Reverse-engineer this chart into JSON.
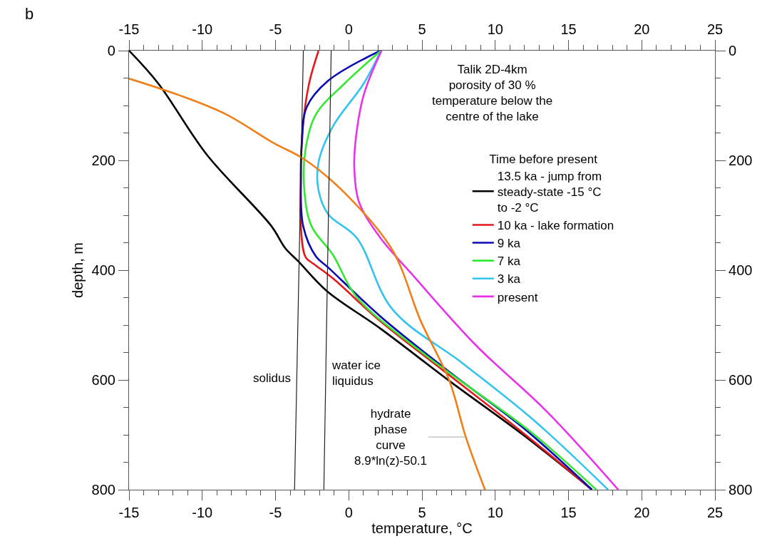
{
  "chart_data": {
    "type": "line",
    "xlabel": "temperature, °C",
    "ylabel": "depth, m",
    "legend_title": "Time before present",
    "legend": "right",
    "marker": "none",
    "line_style": "solid",
    "xlim": [
      -15,
      25
    ],
    "xticks": [
      -15,
      -10,
      -5,
      0,
      5,
      10,
      15,
      20,
      25
    ],
    "x2lim": [
      -15,
      25
    ],
    "x2ticks": [
      -15,
      -10,
      -5,
      0,
      5,
      10,
      15,
      20,
      25
    ],
    "ylim": [
      800,
      0
    ],
    "yticks": [
      0,
      200,
      400,
      600,
      800
    ],
    "y2lim": [
      800,
      0
    ],
    "y2ticks": [
      0,
      200,
      400,
      600,
      800
    ],
    "annotations": [
      "b",
      "Talik 2D-4km\nporosity of 30 %\ntemperature below the\ncentre of the lake",
      {
        "text": "hydrate\nphase\ncurve\n8.9*ln(z)-50.1",
        "x": 7.99,
        "y": 704
      }
    ],
    "series": [
      {
        "name": "13.5 ka - jump from\nsteady-state -15 °C\nto -2 °C",
        "color": "#000000",
        "x": [
          -15,
          -13.0,
          -9.68,
          -5.3,
          -4.33,
          -3.44,
          -1.5,
          2.14,
          7.03,
          11.9,
          16.6
        ],
        "values": [
          0,
          60,
          190,
          319,
          360,
          384,
          438,
          506,
          605,
          700,
          800
        ]
      },
      {
        "name": "10 ka - lake formation",
        "color": "#e31a1c",
        "x": [
          -2.06,
          -2.71,
          -3.16,
          -3.27,
          -3.27,
          -2.95,
          -2.38,
          -1.08,
          2.15,
          6.7,
          11.88,
          16.6
        ],
        "values": [
          0,
          60,
          146,
          233,
          320,
          376,
          389,
          415,
          493,
          588,
          696,
          800
        ]
      },
      {
        "name": "9 ka",
        "color": "#0a0ab4",
        "x": [
          2.16,
          -1.41,
          -2.87,
          -3.2,
          -3.27,
          -3.11,
          -2.24,
          -1.41,
          2.15,
          7.0,
          11.9,
          16.6
        ],
        "values": [
          0,
          55,
          103,
          168,
          233,
          320,
          375,
          395,
          484,
          588,
          687,
          800
        ]
      },
      {
        "name": "7 ka",
        "color": "#33e833",
        "x": [
          2.2,
          -0.29,
          -2.24,
          -2.96,
          -3.03,
          -2.54,
          -1.08,
          0.54,
          5.4,
          12.3,
          16.9
        ],
        "values": [
          0,
          60,
          116,
          181,
          255,
          320,
          372,
          449,
          558,
          692,
          800
        ]
      },
      {
        "name": "3 ka",
        "color": "#33c3ee",
        "x": [
          2.2,
          1.02,
          -1.08,
          -2.06,
          -2.06,
          -1.41,
          0.54,
          2.97,
          7.84,
          12.7,
          17.7
        ],
        "values": [
          0,
          60,
          138,
          203,
          255,
          298,
          341,
          471,
          571,
          675,
          800
        ]
      },
      {
        "name": "present",
        "color": "#e833e8",
        "x": [
          2.24,
          1.02,
          0.45,
          0.38,
          0.7,
          2.15,
          4.27,
          8.65,
          13.5,
          18.4
        ],
        "values": [
          0,
          81,
          168,
          216,
          276,
          341,
          406,
          536,
          657,
          800
        ]
      },
      {
        "color": "#f07f1a",
        "x": [
          -15,
          -11.6,
          -8.38,
          -5.15,
          -3.03,
          -0.29,
          2.97,
          4.92,
          6.86,
          7.99,
          9.3
        ],
        "values": [
          51,
          81,
          116,
          168,
          198,
          259,
          363,
          493,
          601,
          704,
          800
        ]
      },
      {
        "name": "solidus",
        "color": "#222222",
        "x": [
          -3.1,
          -3.7
        ],
        "values": [
          0,
          800
        ]
      },
      {
        "name": "water ice\nliquidus",
        "color": "#222222",
        "x": [
          -1.2,
          -1.7
        ],
        "values": [
          0,
          800
        ]
      }
    ]
  }
}
